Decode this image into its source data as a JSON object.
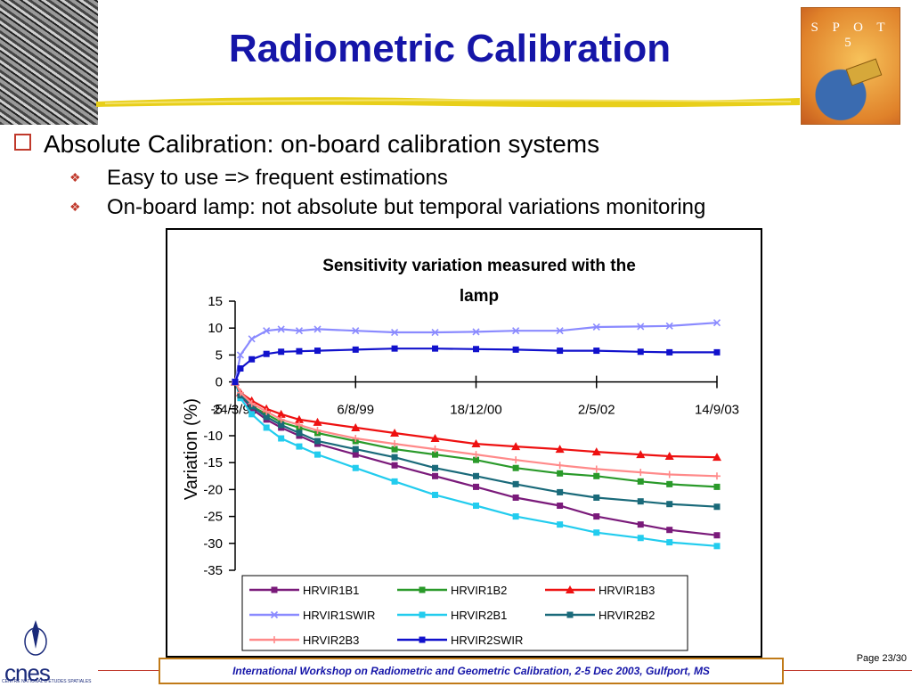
{
  "slide": {
    "title": "Radiometric Calibration",
    "logo_text": "S P O T 5",
    "bullet1": "Absolute Calibration: on-board calibration systems",
    "sub_bullets": [
      "Easy to use => frequent estimations",
      "On-board lamp: not absolute but temporal variations monitoring"
    ],
    "footer": "International Workshop on Radiometric and Geometric Calibration, 2-5 Dec 2003, Gulfport, MS",
    "page": "Page 23/30",
    "org_logo": "cnes",
    "org_subtitle": "CENTRE NATIONAL D'ETUDES SPATIALES",
    "colors": {
      "title": "#1515a8",
      "bullet": "#c0392b",
      "footer_border": "#c07a18"
    }
  },
  "chart_data": {
    "type": "line",
    "title": "Sensitivity variation measured with the lamp",
    "xlabel": "",
    "ylabel": "Variation (%)",
    "xlim": [
      "1998-03-24",
      "2003-09-14"
    ],
    "ylim": [
      -35,
      15
    ],
    "yticks": [
      "15",
      "10",
      "5",
      "0",
      "-5",
      "-10",
      "-15",
      "-20",
      "-25",
      "-30",
      "-35"
    ],
    "xticks": [
      "24/3/98",
      "6/8/99",
      "18/12/00",
      "2/5/02",
      "14/9/03"
    ],
    "x": [
      "1998-03-24",
      "1998-04-15",
      "1998-06-01",
      "1998-08-01",
      "1998-10-01",
      "1998-12-15",
      "1999-03-01",
      "1999-08-06",
      "2000-01-15",
      "2000-07-01",
      "2000-12-18",
      "2001-06-01",
      "2001-12-01",
      "2002-05-02",
      "2002-11-01",
      "2003-03-01",
      "2003-09-14"
    ],
    "legend_position": "bottom",
    "grid": false,
    "series": [
      {
        "name": "HRVIR1B1",
        "color": "#7a1a7a",
        "marker": "square",
        "values": [
          0,
          -2.5,
          -5,
          -7,
          -8.5,
          -10,
          -11.5,
          -13.5,
          -15.5,
          -17.5,
          -19.5,
          -21.5,
          -23,
          -25,
          -26.5,
          -27.5,
          -28.5
        ]
      },
      {
        "name": "HRVIR1B2",
        "color": "#2a9a2a",
        "marker": "square",
        "values": [
          0,
          -2.5,
          -4.5,
          -6,
          -7.5,
          -8.5,
          -9.5,
          -11,
          -12.5,
          -13.5,
          -14.5,
          -16,
          -17,
          -17.5,
          -18.5,
          -19,
          -19.5
        ]
      },
      {
        "name": "HRVIR1B3",
        "color": "#ee1111",
        "marker": "triangle",
        "values": [
          0,
          -2,
          -3.5,
          -5,
          -6,
          -7,
          -7.5,
          -8.5,
          -9.5,
          -10.5,
          -11.5,
          -12,
          -12.5,
          -13,
          -13.5,
          -13.8,
          -14
        ]
      },
      {
        "name": "HRVIR1SWIR",
        "color": "#8a8aff",
        "marker": "x",
        "values": [
          0,
          5,
          8,
          9.5,
          9.8,
          9.5,
          9.8,
          9.5,
          9.2,
          9.2,
          9.3,
          9.5,
          9.5,
          10.2,
          10.3,
          10.4,
          11
        ]
      },
      {
        "name": "HRVIR2B1",
        "color": "#22ccee",
        "marker": "square",
        "values": [
          0,
          -3,
          -6,
          -8.5,
          -10.5,
          -12,
          -13.5,
          -16,
          -18.5,
          -21,
          -23,
          -25,
          -26.5,
          -28,
          -29,
          -29.8,
          -30.5
        ]
      },
      {
        "name": "HRVIR2B2",
        "color": "#1a6a7a",
        "marker": "square",
        "values": [
          0,
          -2.5,
          -4.5,
          -6.5,
          -8,
          -9.5,
          -11,
          -12.5,
          -14,
          -16,
          -17.5,
          -19,
          -20.5,
          -21.5,
          -22.2,
          -22.7,
          -23.2
        ]
      },
      {
        "name": "HRVIR2B3",
        "color": "#ff8a8a",
        "marker": "plus",
        "values": [
          0,
          -2,
          -4,
          -5.5,
          -7,
          -8,
          -9,
          -10.5,
          -11.5,
          -12.5,
          -13.5,
          -14.5,
          -15.5,
          -16.2,
          -16.8,
          -17.2,
          -17.5
        ]
      },
      {
        "name": "HRVIR2SWIR",
        "color": "#1111cc",
        "marker": "square",
        "values": [
          0,
          2.5,
          4.2,
          5.2,
          5.6,
          5.7,
          5.8,
          6,
          6.2,
          6.2,
          6.1,
          6,
          5.8,
          5.8,
          5.6,
          5.5,
          5.5
        ]
      }
    ]
  }
}
